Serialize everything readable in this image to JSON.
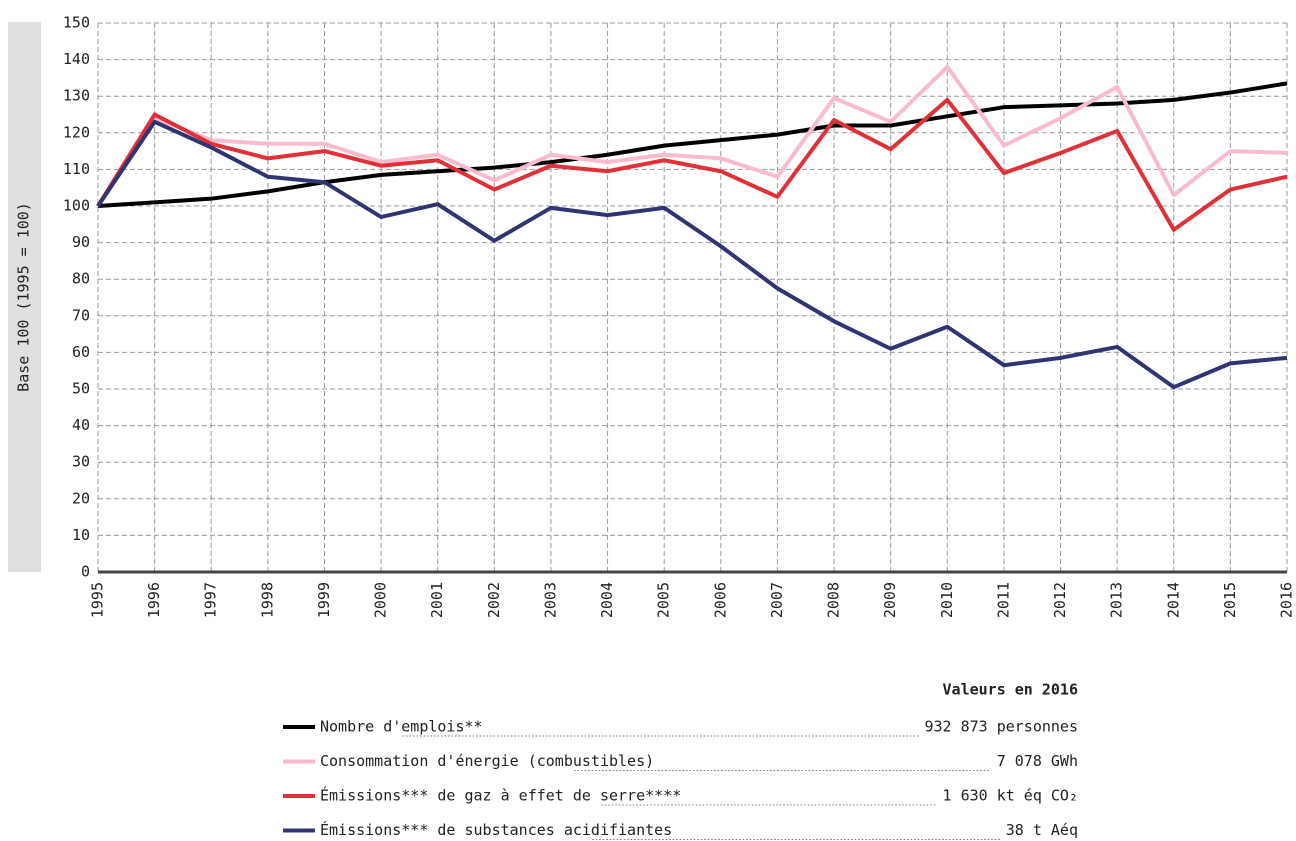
{
  "chart_data": {
    "type": "line",
    "y_label": "Base 100 (1995 = 100)",
    "categories": [
      "1995",
      "1996",
      "1997",
      "1998",
      "1999",
      "2000",
      "2001",
      "2002",
      "2003",
      "2004",
      "2005",
      "2006",
      "2007",
      "2008",
      "2009",
      "2010",
      "2011",
      "2012",
      "2013",
      "2014",
      "2015",
      "2016"
    ],
    "ylim": [
      0,
      150
    ],
    "yticks": [
      0,
      10,
      20,
      30,
      40,
      50,
      60,
      70,
      80,
      90,
      100,
      110,
      120,
      130,
      140,
      150
    ],
    "grid": true,
    "legend_title": "Valeurs en 2016",
    "series": [
      {
        "name": "Nombre d'emplois**",
        "color": "#000000",
        "legend_value": "932 873 personnes",
        "values": [
          100,
          101,
          102,
          104,
          106.5,
          108.5,
          109.5,
          110.5,
          112,
          114,
          116.5,
          118,
          119.5,
          122,
          122,
          124.5,
          127,
          127.5,
          128,
          129,
          131,
          133.5
        ]
      },
      {
        "name": "Consommation d'énergie (combustibles)",
        "color": "#f9bccf",
        "legend_value": "7 078 GWh",
        "values": [
          100,
          124,
          118,
          117,
          117,
          112,
          114,
          107,
          114,
          112,
          114,
          113,
          108,
          129.5,
          123,
          138,
          116.5,
          124,
          132.5,
          103,
          115,
          114.5
        ]
      },
      {
        "name": "Émissions*** de gaz à effet de serre****",
        "color": "#e0303a",
        "legend_value": "1 630 kt éq CO₂",
        "values": [
          100,
          125,
          117,
          113,
          115,
          111,
          112.5,
          104.5,
          111,
          109.5,
          112.5,
          109.5,
          102.5,
          123.5,
          115.5,
          129,
          109,
          114.5,
          120.5,
          93.5,
          104.5,
          108
        ]
      },
      {
        "name": "Émissions*** de substances acidifiantes",
        "color": "#2f3570",
        "legend_value": "38 t Aéq",
        "values": [
          100,
          123,
          116,
          108,
          106.5,
          97,
          100.5,
          90.5,
          99.5,
          97.5,
          99.5,
          89,
          77.5,
          68.5,
          61,
          67,
          56.5,
          58.5,
          61.5,
          50.5,
          57,
          58.5
        ]
      }
    ]
  }
}
